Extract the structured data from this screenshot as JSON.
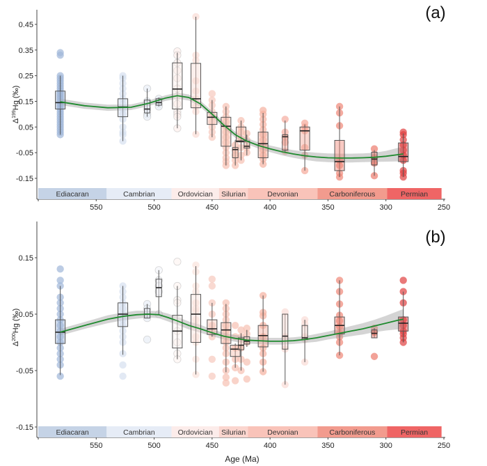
{
  "chart_data": [
    {
      "type": "boxplot",
      "panel_tag": "(a)",
      "title": "",
      "xlabel": "",
      "ylabel_prefix": "Δ",
      "ylabel_sup": "199",
      "ylabel_suffix": "Hg (‰)",
      "xlim": [
        600,
        250
      ],
      "ylim": [
        -0.22,
        0.53
      ],
      "x_ticks": [
        550,
        500,
        450,
        400,
        350,
        300,
        250
      ],
      "y_ticks": [
        0.45,
        0.35,
        0.25,
        0.15,
        0.05,
        -0.05,
        -0.15
      ],
      "y_tick_labels": [
        "0.45",
        "0.35",
        "0.25",
        "0.15",
        "0.05",
        "-0.05",
        "-0.15"
      ],
      "grid": false,
      "smooth_fit": {
        "color": "#1e8a2e",
        "age": [
          581,
          560,
          540,
          520,
          505,
          490,
          480,
          470,
          460,
          450,
          440,
          430,
          420,
          410,
          400,
          390,
          380,
          370,
          360,
          350,
          340,
          330,
          320,
          310,
          300,
          290,
          285
        ],
        "value": [
          0.148,
          0.133,
          0.125,
          0.127,
          0.142,
          0.163,
          0.172,
          0.165,
          0.14,
          0.1,
          0.058,
          0.02,
          -0.005,
          -0.022,
          -0.035,
          -0.046,
          -0.055,
          -0.062,
          -0.067,
          -0.07,
          -0.071,
          -0.071,
          -0.07,
          -0.068,
          -0.064,
          -0.058,
          -0.055
        ],
        "band_halfwidth": [
          0.012,
          0.012,
          0.012,
          0.011,
          0.011,
          0.011,
          0.012,
          0.012,
          0.012,
          0.012,
          0.012,
          0.012,
          0.012,
          0.012,
          0.013,
          0.014,
          0.015,
          0.016,
          0.017,
          0.017,
          0.017,
          0.017,
          0.017,
          0.018,
          0.021,
          0.026,
          0.029
        ]
      },
      "groups": [
        {
          "age": 581,
          "color": "#9fb6d8",
          "q1": 0.12,
          "median": 0.145,
          "q3": 0.19,
          "whisker_low": 0.02,
          "whisker_high": 0.25,
          "points": [
            0.34,
            0.33,
            0.25,
            0.24,
            0.23,
            0.22,
            0.21,
            0.2,
            0.19,
            0.18,
            0.17,
            0.16,
            0.15,
            0.14,
            0.13,
            0.12,
            0.11,
            0.1,
            0.09,
            0.08,
            0.07,
            0.06,
            0.05,
            0.04,
            0.03,
            0.02
          ]
        },
        {
          "age": 527,
          "color": "#d6e0ef",
          "q1": 0.09,
          "median": 0.128,
          "q3": 0.16,
          "whisker_low": -0.005,
          "whisker_high": 0.25,
          "points": [
            0.25,
            0.24,
            0.22,
            0.2,
            0.18,
            0.16,
            0.14,
            0.12,
            0.1,
            0.08,
            0.05,
            0.03,
            0.02,
            -0.005
          ]
        },
        {
          "age": 506,
          "color": "#e8eef7",
          "q1": 0.105,
          "median": 0.12,
          "q3": 0.155,
          "whisker_low": 0.09,
          "whisker_high": 0.2,
          "points": [
            0.2,
            0.15,
            0.12,
            0.1,
            0.09
          ]
        },
        {
          "age": 496,
          "color": "#e8eef7",
          "q1": 0.135,
          "median": 0.145,
          "q3": 0.16,
          "whisker_low": 0.13,
          "whisker_high": 0.165,
          "points": [
            0.16,
            0.14,
            0.13
          ]
        },
        {
          "age": 480,
          "color": "#fdf0ec",
          "q1": 0.12,
          "median": 0.198,
          "q3": 0.3,
          "whisker_low": 0.045,
          "whisker_high": 0.34,
          "points": [
            0.345,
            0.33,
            0.3,
            0.27,
            0.24,
            0.2,
            0.17,
            0.14,
            0.11,
            0.1,
            0.09,
            0.045
          ]
        },
        {
          "age": 464,
          "color": "#f9dcd4",
          "q1": 0.125,
          "median": 0.16,
          "q3": 0.298,
          "whisker_low": 0.022,
          "whisker_high": 0.48,
          "points": [
            0.48,
            0.33,
            0.31,
            0.23,
            0.19,
            0.16,
            0.13,
            0.11,
            0.022
          ]
        },
        {
          "age": 450,
          "color": "#f7c9bd",
          "q1": 0.06,
          "median": 0.088,
          "q3": 0.107,
          "whisker_low": 0.01,
          "whisker_high": 0.155,
          "points": [
            0.18,
            0.155,
            0.135,
            0.11,
            0.09,
            0.07,
            0.05,
            0.03,
            0.01
          ]
        },
        {
          "age": 438,
          "color": "#f7c0b2",
          "q1": -0.025,
          "median": 0.053,
          "q3": 0.088,
          "whisker_low": -0.1,
          "whisker_high": 0.13,
          "points": [
            0.13,
            0.11,
            0.09,
            0.07,
            0.05,
            0.03,
            0.01,
            -0.01,
            -0.03,
            -0.05,
            -0.07,
            -0.085,
            -0.1
          ]
        },
        {
          "age": 430,
          "color": "#f7c0b2",
          "q1": -0.07,
          "median": -0.038,
          "q3": -0.03,
          "whisker_low": -0.1,
          "whisker_high": 0.0,
          "points": [
            -0.02,
            -0.04,
            -0.06,
            -0.08,
            -0.1
          ]
        },
        {
          "age": 425,
          "color": "#f7c0b2",
          "q1": -0.008,
          "median": -0.005,
          "q3": 0.05,
          "whisker_low": -0.08,
          "whisker_high": 0.075,
          "points": [
            0.075,
            0.05,
            0.03,
            0.0,
            -0.03,
            -0.06,
            -0.08
          ]
        },
        {
          "age": 420,
          "color": "#f7c0b2",
          "q1": -0.032,
          "median": -0.025,
          "q3": -0.005,
          "whisker_low": -0.06,
          "whisker_high": 0.02,
          "points": [
            0.025,
            0.0,
            -0.03,
            -0.05
          ]
        },
        {
          "age": 406,
          "color": "#f5b0a0",
          "q1": -0.07,
          "median": -0.015,
          "q3": 0.03,
          "whisker_low": -0.095,
          "whisker_high": 0.105,
          "points": [
            0.115,
            0.1,
            0.08,
            0.06,
            0.04,
            0.02,
            0.0,
            -0.02,
            -0.04,
            -0.06,
            -0.075,
            -0.095
          ]
        },
        {
          "age": 387,
          "color": "#f5ada0",
          "q1": -0.04,
          "median": 0.012,
          "q3": 0.02,
          "whisker_low": -0.05,
          "whisker_high": 0.075,
          "points": [
            0.08,
            0.03,
            0.01,
            -0.01,
            -0.045
          ]
        },
        {
          "age": 370,
          "color": "#f5a898",
          "q1": -0.04,
          "median": 0.035,
          "q3": 0.05,
          "whisker_low": -0.12,
          "whisker_high": 0.06,
          "points": [
            0.065,
            0.05,
            0.035,
            -0.03,
            -0.06,
            -0.12
          ]
        },
        {
          "age": 340,
          "color": "#f08878",
          "q1": -0.12,
          "median": -0.085,
          "q3": -0.002,
          "whisker_low": -0.145,
          "whisker_high": 0.13,
          "points": [
            0.13,
            0.105,
            0.055,
            -0.08,
            -0.1,
            -0.13,
            -0.145
          ]
        },
        {
          "age": 310,
          "color": "#ec7a6c",
          "q1": -0.098,
          "median": -0.075,
          "q3": -0.048,
          "whisker_low": -0.14,
          "whisker_high": -0.04,
          "points": [
            -0.035,
            -0.07,
            -0.09,
            -0.14
          ]
        },
        {
          "age": 285,
          "color": "#e04040",
          "q1": -0.085,
          "median": -0.065,
          "q3": -0.012,
          "whisker_low": -0.145,
          "whisker_high": 0.025,
          "points": [
            0.03,
            0.02,
            0.0,
            -0.02,
            -0.04,
            -0.06,
            -0.08,
            -0.12,
            -0.13,
            -0.145
          ]
        }
      ]
    },
    {
      "type": "boxplot",
      "panel_tag": "(b)",
      "title": "",
      "xlabel": "Age (Ma)",
      "ylabel_prefix": "Δ",
      "ylabel_sup": "200",
      "ylabel_suffix": "Hg (‰)",
      "xlim": [
        600,
        250
      ],
      "ylim": [
        -0.17,
        0.2
      ],
      "x_ticks": [
        550,
        500,
        450,
        400,
        350,
        300,
        250
      ],
      "y_ticks": [
        0.15,
        0.05,
        -0.05,
        -0.15
      ],
      "y_tick_labels": [
        "0.15",
        "0.05",
        "-0.05",
        "-0.15"
      ],
      "grid": false,
      "smooth_fit": {
        "color": "#1e8a2e",
        "age": [
          581,
          560,
          540,
          527,
          515,
          505,
          496,
          488,
          480,
          470,
          460,
          450,
          440,
          430,
          420,
          410,
          400,
          390,
          380,
          370,
          360,
          350,
          340,
          330,
          320,
          310,
          300,
          290,
          285
        ],
        "value": [
          0.018,
          0.03,
          0.041,
          0.046,
          0.049,
          0.05,
          0.049,
          0.044,
          0.038,
          0.03,
          0.024,
          0.017,
          0.011,
          0.007,
          0.004,
          0.003,
          0.002,
          0.002,
          0.003,
          0.005,
          0.008,
          0.012,
          0.016,
          0.02,
          0.024,
          0.029,
          0.034,
          0.039,
          0.041
        ],
        "band_halfwidth": [
          0.006,
          0.006,
          0.007,
          0.007,
          0.007,
          0.006,
          0.006,
          0.007,
          0.007,
          0.007,
          0.007,
          0.006,
          0.006,
          0.006,
          0.006,
          0.006,
          0.006,
          0.006,
          0.006,
          0.006,
          0.007,
          0.007,
          0.008,
          0.009,
          0.01,
          0.011,
          0.013,
          0.016,
          0.018
        ]
      },
      "groups": [
        {
          "age": 581,
          "color": "#9fb6d8",
          "q1": -0.002,
          "median": 0.018,
          "q3": 0.04,
          "whisker_low": -0.058,
          "whisker_high": 0.1,
          "points": [
            0.13,
            0.11,
            0.1,
            0.08,
            0.07,
            0.06,
            0.05,
            0.04,
            0.03,
            0.02,
            0.01,
            0.0,
            -0.01,
            -0.02,
            -0.03,
            -0.04,
            -0.06
          ]
        },
        {
          "age": 527,
          "color": "#d6e0ef",
          "q1": 0.028,
          "median": 0.05,
          "q3": 0.07,
          "whisker_low": -0.022,
          "whisker_high": 0.1,
          "points": [
            0.1,
            0.09,
            0.08,
            0.07,
            0.06,
            0.05,
            0.04,
            0.03,
            0.02,
            0.01,
            0.0,
            -0.02,
            -0.04,
            -0.06
          ]
        },
        {
          "age": 506,
          "color": "#e8eef7",
          "q1": 0.043,
          "median": 0.05,
          "q3": 0.06,
          "whisker_low": 0.043,
          "whisker_high": 0.068,
          "points": [
            0.068,
            0.06,
            0.05,
            0.043,
            0.005
          ]
        },
        {
          "age": 496,
          "color": "#f3f5f9",
          "q1": 0.081,
          "median": 0.097,
          "q3": 0.112,
          "whisker_low": 0.05,
          "whisker_high": 0.128,
          "points": [
            0.128,
            0.11,
            0.1,
            0.09,
            0.05
          ]
        },
        {
          "age": 480,
          "color": "#fdf5f2",
          "q1": -0.01,
          "median": 0.02,
          "q3": 0.048,
          "whisker_low": -0.03,
          "whisker_high": 0.1,
          "points": [
            0.143,
            0.1,
            0.075,
            0.07,
            0.04,
            0.02,
            0.0,
            -0.02,
            -0.03
          ]
        },
        {
          "age": 464,
          "color": "#fae3dc",
          "q1": 0.0,
          "median": 0.05,
          "q3": 0.085,
          "whisker_low": -0.057,
          "whisker_high": 0.135,
          "points": [
            0.137,
            0.125,
            0.1,
            0.09,
            0.07,
            0.06,
            0.055,
            0.04,
            0.03,
            0.01,
            0.0,
            -0.03,
            -0.057
          ]
        },
        {
          "age": 450,
          "color": "#f7c9bd",
          "q1": 0.014,
          "median": 0.024,
          "q3": 0.04,
          "whisker_low": 0.01,
          "whisker_high": 0.07,
          "points": [
            0.112,
            0.1,
            0.07,
            0.05,
            0.03,
            0.02,
            0.01,
            -0.03,
            -0.06
          ]
        },
        {
          "age": 438,
          "color": "#f7c0b2",
          "q1": -0.002,
          "median": 0.022,
          "q3": 0.035,
          "whisker_low": -0.053,
          "whisker_high": 0.068,
          "points": [
            0.07,
            0.06,
            0.05,
            0.04,
            0.03,
            0.02,
            0.01,
            0.0,
            -0.01,
            -0.02,
            -0.035,
            -0.05,
            -0.062,
            -0.072
          ]
        },
        {
          "age": 430,
          "color": "#f7c0b2",
          "q1": -0.025,
          "median": -0.012,
          "q3": -0.005,
          "whisker_low": -0.045,
          "whisker_high": -0.002,
          "points": [
            0.03,
            0.01,
            -0.01,
            -0.03,
            -0.045,
            -0.068
          ]
        },
        {
          "age": 425,
          "color": "#f7c0b2",
          "q1": -0.013,
          "median": -0.005,
          "q3": 0.008,
          "whisker_low": -0.05,
          "whisker_high": 0.016,
          "points": [
            0.022,
            0.01,
            -0.01,
            -0.03,
            -0.05
          ]
        },
        {
          "age": 420,
          "color": "#f7c0b2",
          "q1": -0.003,
          "median": 0.002,
          "q3": 0.01,
          "whisker_low": -0.008,
          "whisker_high": 0.022,
          "points": [
            0.025,
            0.015,
            0.0,
            -0.035,
            -0.065
          ]
        },
        {
          "age": 406,
          "color": "#f5b0a0",
          "q1": -0.008,
          "median": 0.012,
          "q3": 0.03,
          "whisker_low": -0.052,
          "whisker_high": 0.083,
          "points": [
            0.083,
            0.053,
            0.047,
            0.03,
            0.01,
            -0.01,
            -0.02,
            -0.035,
            -0.052
          ]
        },
        {
          "age": 387,
          "color": "#fadbd5",
          "q1": -0.012,
          "median": 0.011,
          "q3": 0.05,
          "whisker_low": -0.075,
          "whisker_high": 0.05,
          "points": [
            0.054,
            0.01,
            -0.012,
            -0.075
          ]
        },
        {
          "age": 370,
          "color": "#fadbd5",
          "q1": 0.005,
          "median": 0.008,
          "q3": 0.03,
          "whisker_low": -0.035,
          "whisker_high": 0.04,
          "points": [
            0.04,
            0.033,
            0.01,
            0.005,
            -0.035
          ]
        },
        {
          "age": 340,
          "color": "#f08878",
          "q1": 0.015,
          "median": 0.03,
          "q3": 0.045,
          "whisker_low": -0.023,
          "whisker_high": 0.11,
          "points": [
            0.11,
            0.09,
            0.068,
            0.048,
            0.038,
            0.028,
            0.016,
            0.01,
            0.0,
            -0.023
          ]
        },
        {
          "age": 310,
          "color": "#ec7a6c",
          "q1": 0.008,
          "median": 0.016,
          "q3": 0.022,
          "whisker_low": 0.008,
          "whisker_high": 0.025,
          "points": [
            0.025,
            0.018,
            -0.025
          ]
        },
        {
          "age": 285,
          "color": "#e04040",
          "q1": 0.02,
          "median": 0.034,
          "q3": 0.045,
          "whisker_low": 0.0,
          "whisker_high": 0.09,
          "points": [
            0.11,
            0.09,
            0.07,
            0.04,
            0.03,
            0.02,
            0.015,
            0.008,
            0.0
          ]
        }
      ]
    }
  ],
  "periods": [
    {
      "name": "Ediacaran",
      "start": 600,
      "end": 541,
      "color": "#c5d3e6"
    },
    {
      "name": "Cambrian",
      "start": 541,
      "end": 485,
      "color": "#e6ecf6"
    },
    {
      "name": "Ordovician",
      "start": 485,
      "end": 444,
      "color": "#fcecea"
    },
    {
      "name": "Silurian",
      "start": 444,
      "end": 419,
      "color": "#fbd6cf"
    },
    {
      "name": "Devonian",
      "start": 419,
      "end": 359,
      "color": "#f9c3b9"
    },
    {
      "name": "Carboniferous",
      "start": 359,
      "end": 299,
      "color": "#f29b8e"
    },
    {
      "name": "Permian",
      "start": 299,
      "end": 252,
      "color": "#ef6565"
    }
  ]
}
